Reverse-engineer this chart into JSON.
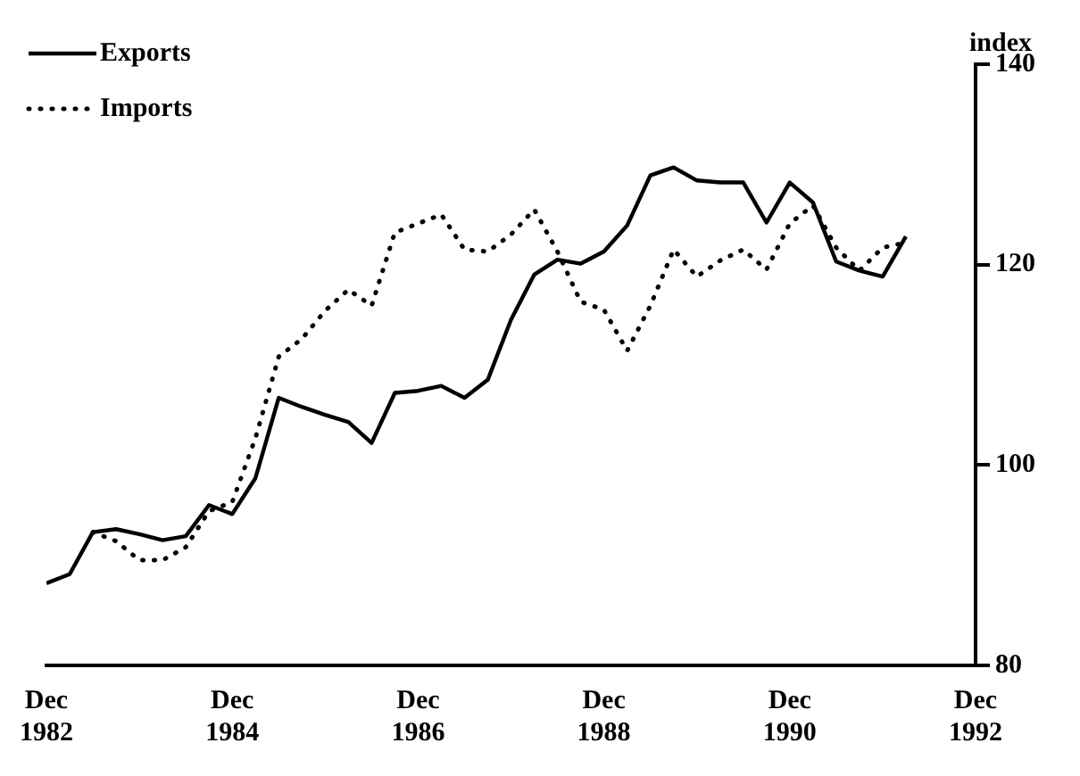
{
  "chart_data": {
    "type": "line",
    "ylabel": "index",
    "x": [
      "1982-12",
      "1983-03",
      "1983-06",
      "1983-09",
      "1983-12",
      "1984-03",
      "1984-06",
      "1984-09",
      "1984-12",
      "1985-03",
      "1985-06",
      "1985-09",
      "1985-12",
      "1986-03",
      "1986-06",
      "1986-09",
      "1986-12",
      "1987-03",
      "1987-06",
      "1987-09",
      "1987-12",
      "1988-03",
      "1988-06",
      "1988-09",
      "1988-12",
      "1989-03",
      "1989-06",
      "1989-09",
      "1989-12",
      "1990-03",
      "1990-06",
      "1990-09",
      "1990-12",
      "1991-03",
      "1991-06",
      "1991-09",
      "1991-12",
      "1992-03"
    ],
    "series": [
      {
        "name": "Exports",
        "color": "#000000",
        "line_style": "solid",
        "values": [
          88.2,
          89.1,
          93.3,
          93.6,
          93.1,
          92.5,
          92.9,
          96.0,
          95.1,
          98.7,
          106.7,
          105.8,
          105.0,
          104.3,
          102.2,
          107.2,
          107.4,
          107.9,
          106.7,
          108.5,
          114.5,
          119.0,
          120.5,
          120.1,
          121.3,
          123.9,
          128.9,
          129.7,
          128.4,
          128.2,
          128.2,
          124.2,
          128.2,
          126.2,
          120.3,
          119.4,
          118.8,
          122.8
        ]
      },
      {
        "name": "Imports",
        "color": "#000000",
        "line_style": "dotted",
        "values": [
          null,
          null,
          93.3,
          92.4,
          90.5,
          90.5,
          91.8,
          95.4,
          96.3,
          102.7,
          110.8,
          112.6,
          115.4,
          117.5,
          115.9,
          123.2,
          124.1,
          125.0,
          121.5,
          121.3,
          123.0,
          125.5,
          121.3,
          116.3,
          115.5,
          111.4,
          115.9,
          121.5,
          118.8,
          120.4,
          121.5,
          119.5,
          124.1,
          125.9,
          121.7,
          119.4,
          121.7,
          122.2
        ]
      }
    ],
    "xlim": [
      "1982-12",
      "1992-12"
    ],
    "xticks": [
      {
        "value": "1982-12",
        "label": "Dec 1982"
      },
      {
        "value": "1984-12",
        "label": "Dec 1984"
      },
      {
        "value": "1986-12",
        "label": "Dec 1986"
      },
      {
        "value": "1988-12",
        "label": "Dec 1988"
      },
      {
        "value": "1990-12",
        "label": "Dec 1990"
      },
      {
        "value": "1992-12",
        "label": "Dec 1992"
      }
    ],
    "ylim": [
      80,
      140
    ],
    "yticks": [
      80,
      100,
      120,
      140
    ],
    "grid": false,
    "legend": "top left",
    "marker": "none"
  }
}
